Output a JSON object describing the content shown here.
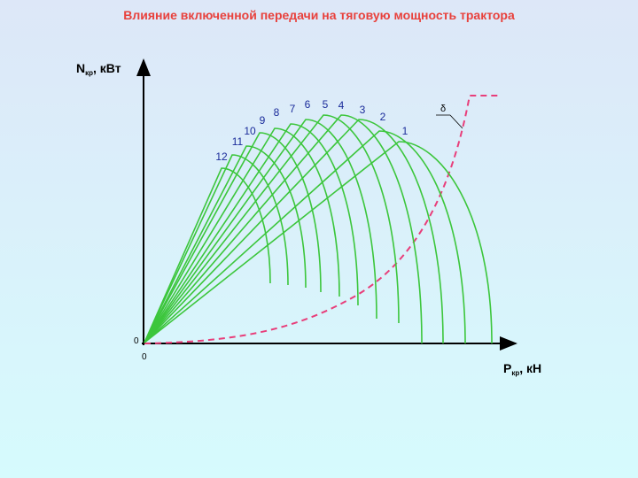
{
  "title": "Влияние включенной передачи на тяговую мощность трактора",
  "y_axis_label": {
    "main": "N",
    "sub": "кр",
    "rest": ", кВт"
  },
  "x_axis_label": {
    "main": "P",
    "sub": "кр",
    "rest": ", кН"
  },
  "origin_labels": [
    "0",
    "0"
  ],
  "curve_labels": [
    "1",
    "2",
    "3",
    "4",
    "5",
    "6",
    "7",
    "8",
    "9",
    "10",
    "11",
    "12"
  ],
  "dashed_curve_label": "δ"
}
